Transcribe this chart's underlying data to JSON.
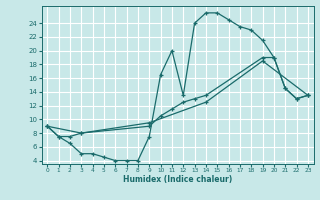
{
  "xlabel": "Humidex (Indice chaleur)",
  "bg_color": "#c8e8e8",
  "grid_color": "#ffffff",
  "line_color": "#1a6b6b",
  "xlim": [
    -0.5,
    23.5
  ],
  "ylim": [
    3.5,
    26.5
  ],
  "xticks": [
    0,
    1,
    2,
    3,
    4,
    5,
    6,
    7,
    8,
    9,
    10,
    11,
    12,
    13,
    14,
    15,
    16,
    17,
    18,
    19,
    20,
    21,
    22,
    23
  ],
  "yticks": [
    4,
    6,
    8,
    10,
    12,
    14,
    16,
    18,
    20,
    22,
    24
  ],
  "line1_x": [
    0,
    1,
    2,
    3,
    4,
    5,
    6,
    7,
    8,
    9,
    10,
    11,
    12,
    13,
    14,
    15,
    16,
    17,
    18,
    19,
    20,
    21,
    22,
    23
  ],
  "line1_y": [
    9,
    7.5,
    6.5,
    5.0,
    5.0,
    4.5,
    4.0,
    4.0,
    4.0,
    7.5,
    16.5,
    20.0,
    13.5,
    24.0,
    25.5,
    25.5,
    24.5,
    23.5,
    23.0,
    21.5,
    19.0,
    14.5,
    13.0,
    13.5
  ],
  "line2_x": [
    0,
    1,
    2,
    3,
    9,
    10,
    11,
    12,
    13,
    14,
    19,
    20,
    21,
    22,
    23
  ],
  "line2_y": [
    9,
    7.5,
    7.5,
    8.0,
    9.0,
    10.5,
    11.5,
    12.5,
    13.0,
    13.5,
    19.0,
    19.0,
    14.5,
    13.0,
    13.5
  ],
  "line3_x": [
    0,
    3,
    9,
    14,
    19,
    23
  ],
  "line3_y": [
    9,
    8.0,
    9.5,
    12.5,
    18.5,
    13.5
  ]
}
